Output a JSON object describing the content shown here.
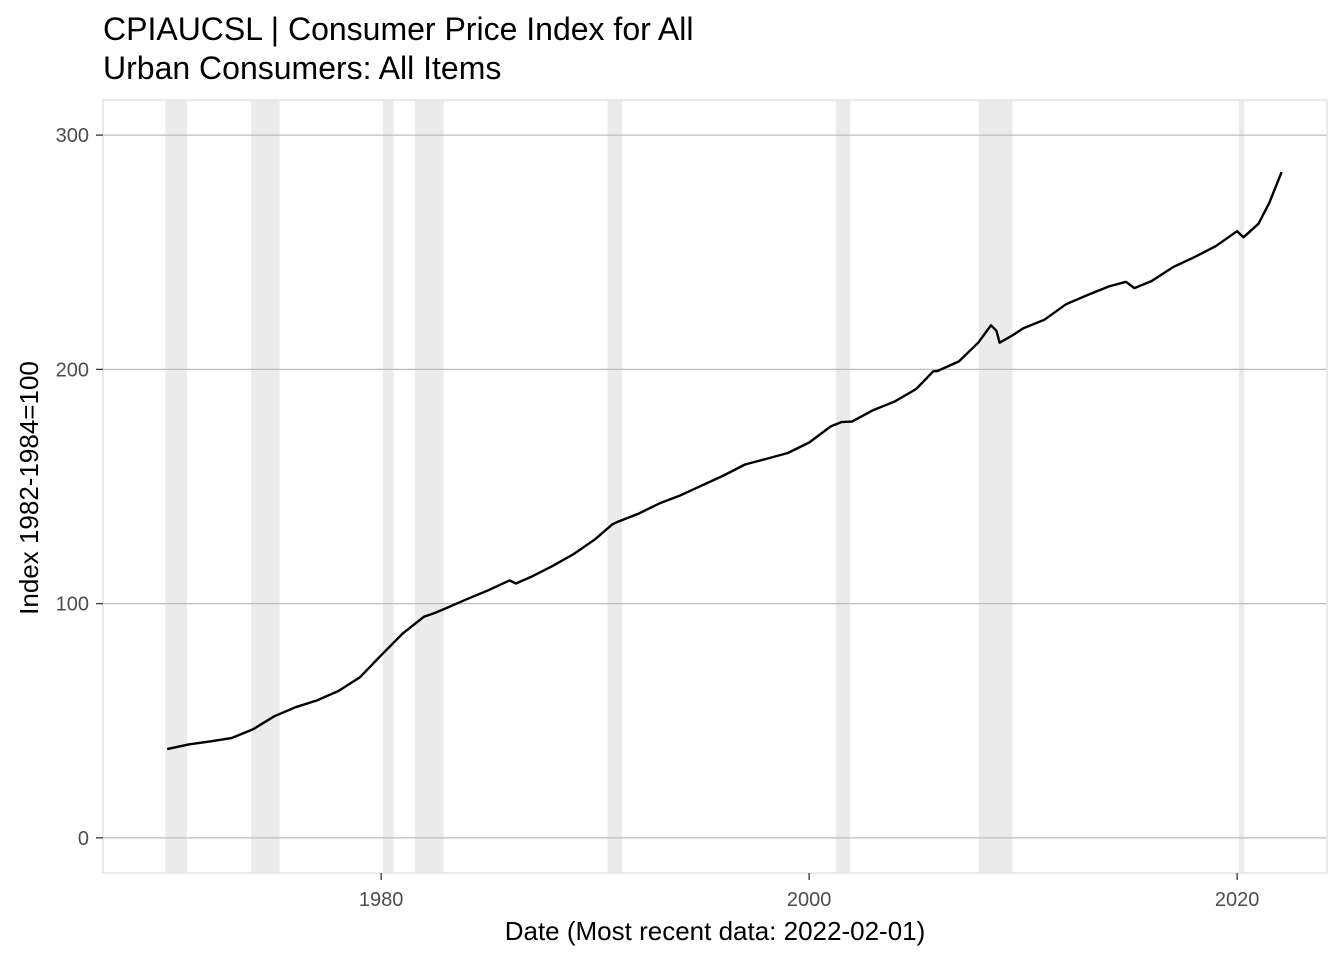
{
  "chart_data": {
    "type": "line",
    "title_line1": "CPIAUCSL | Consumer Price Index for All",
    "title_line2": "Urban Consumers: All Items",
    "xlabel": "Date (Most recent data: 2022-02-01)",
    "ylabel": "Index 1982-1984=100",
    "x_ticks": [
      {
        "value": 1980,
        "label": "1980"
      },
      {
        "value": 2000,
        "label": "2000"
      },
      {
        "value": 2020,
        "label": "2020"
      }
    ],
    "y_ticks": [
      {
        "value": 0,
        "label": "0"
      },
      {
        "value": 100,
        "label": "100"
      },
      {
        "value": 200,
        "label": "200"
      },
      {
        "value": 300,
        "label": "300"
      }
    ],
    "xlim": [
      1967.0,
      2024.2
    ],
    "ylim": [
      -15,
      315
    ],
    "grid": true,
    "recessions": [
      [
        1969.92,
        1970.92
      ],
      [
        1973.92,
        1975.25
      ],
      [
        1980.08,
        1980.58
      ],
      [
        1981.58,
        1982.92
      ],
      [
        1990.58,
        1991.25
      ],
      [
        2001.25,
        2001.92
      ],
      [
        2007.92,
        2009.5
      ],
      [
        2020.08,
        2020.33
      ]
    ],
    "colors": {
      "line": "#000000",
      "recession": "#ebebeb",
      "grid": "#bdbdbd",
      "panel_border": "#e0e0e0"
    },
    "series": [
      {
        "points": [
          [
            1970.0,
            37.9
          ],
          [
            1971.0,
            39.9
          ],
          [
            1972.0,
            41.2
          ],
          [
            1973.0,
            42.6
          ],
          [
            1974.0,
            46.3
          ],
          [
            1975.0,
            51.9
          ],
          [
            1976.0,
            55.8
          ],
          [
            1977.0,
            58.7
          ],
          [
            1978.0,
            62.7
          ],
          [
            1979.0,
            68.5
          ],
          [
            1980.0,
            78.0
          ],
          [
            1981.0,
            87.2
          ],
          [
            1982.0,
            94.4
          ],
          [
            1982.5,
            96.0
          ],
          [
            1983.0,
            97.9
          ],
          [
            1984.0,
            101.9
          ],
          [
            1985.0,
            105.7
          ],
          [
            1986.0,
            109.9
          ],
          [
            1986.3,
            108.6
          ],
          [
            1987.0,
            111.4
          ],
          [
            1988.0,
            116.0
          ],
          [
            1989.0,
            121.2
          ],
          [
            1990.0,
            127.5
          ],
          [
            1990.8,
            133.8
          ],
          [
            1991.0,
            134.7
          ],
          [
            1992.0,
            138.3
          ],
          [
            1993.0,
            142.8
          ],
          [
            1994.0,
            146.3
          ],
          [
            1995.0,
            150.5
          ],
          [
            1996.0,
            154.7
          ],
          [
            1997.0,
            159.4
          ],
          [
            1998.0,
            161.8
          ],
          [
            1999.0,
            164.3
          ],
          [
            2000.0,
            168.8
          ],
          [
            2001.0,
            175.6
          ],
          [
            2001.5,
            177.5
          ],
          [
            2002.0,
            177.7
          ],
          [
            2003.0,
            182.6
          ],
          [
            2004.0,
            186.3
          ],
          [
            2005.0,
            191.6
          ],
          [
            2005.8,
            199.2
          ],
          [
            2006.0,
            199.3
          ],
          [
            2007.0,
            203.4
          ],
          [
            2007.9,
            211.4
          ],
          [
            2008.5,
            218.8
          ],
          [
            2008.75,
            216.5
          ],
          [
            2008.9,
            211.4
          ],
          [
            2009.5,
            214.5
          ],
          [
            2010.0,
            217.5
          ],
          [
            2011.0,
            221.2
          ],
          [
            2012.0,
            227.8
          ],
          [
            2013.0,
            231.7
          ],
          [
            2014.0,
            235.4
          ],
          [
            2014.8,
            237.4
          ],
          [
            2015.2,
            234.7
          ],
          [
            2016.0,
            237.7
          ],
          [
            2017.0,
            243.6
          ],
          [
            2018.0,
            247.9
          ],
          [
            2019.0,
            252.6
          ],
          [
            2020.0,
            259.0
          ],
          [
            2020.3,
            256.4
          ],
          [
            2021.0,
            262.2
          ],
          [
            2021.5,
            271.0
          ],
          [
            2022.08,
            284.2
          ]
        ]
      }
    ]
  }
}
